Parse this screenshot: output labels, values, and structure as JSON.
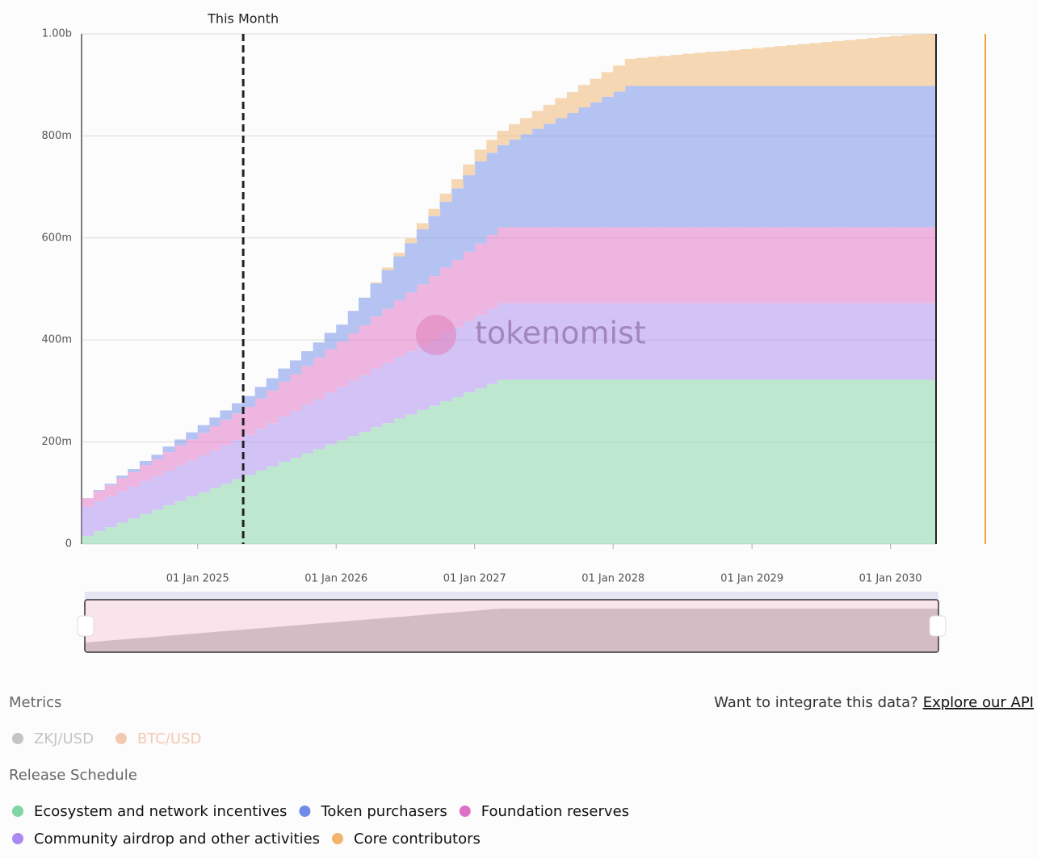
{
  "chart_data": {
    "type": "stacked-step-area",
    "annotations": [
      {
        "text": "This Month",
        "x": "2025-05-01"
      }
    ],
    "watermark": "tokenomist",
    "xlim": [
      "2024-03-01",
      "2030-05-01"
    ],
    "xticks": [
      {
        "value": "2025-01-01",
        "label": "01 Jan 2025"
      },
      {
        "value": "2026-01-01",
        "label": "01 Jan 2026"
      },
      {
        "value": "2027-01-01",
        "label": "01 Jan 2027"
      },
      {
        "value": "2028-01-01",
        "label": "01 Jan 2028"
      },
      {
        "value": "2029-01-01",
        "label": "01 Jan 2029"
      },
      {
        "value": "2030-01-01",
        "label": "01 Jan 2030"
      }
    ],
    "ylim": [
      0,
      1000
    ],
    "yticks": [
      0,
      {
        "value": 200,
        "label": "200m"
      },
      {
        "value": 400,
        "label": "400m"
      },
      {
        "value": 600,
        "label": "600m"
      },
      {
        "value": 800,
        "label": "800m"
      },
      {
        "value": 1000,
        "label": "1.00b"
      }
    ],
    "grid": true,
    "legend_title": "Release Schedule",
    "x": [
      "2024-03-01",
      "2024-04-01",
      "2024-05-01",
      "2024-06-01",
      "2024-07-01",
      "2024-08-01",
      "2024-09-01",
      "2024-10-01",
      "2024-11-01",
      "2024-12-01",
      "2025-01-01",
      "2025-02-01",
      "2025-03-01",
      "2025-04-01",
      "2025-05-01",
      "2025-06-01",
      "2025-07-01",
      "2025-08-01",
      "2025-09-01",
      "2025-10-01",
      "2025-11-01",
      "2025-12-01",
      "2026-01-01",
      "2026-02-01",
      "2026-03-01",
      "2026-04-01",
      "2026-05-01",
      "2026-06-01",
      "2026-07-01",
      "2026-08-01",
      "2026-09-01",
      "2026-10-01",
      "2026-11-01",
      "2026-12-01",
      "2027-01-01",
      "2027-02-01",
      "2027-03-01",
      "2027-04-01",
      "2027-05-01",
      "2027-06-01",
      "2027-07-01",
      "2027-08-01",
      "2027-09-01",
      "2027-10-01",
      "2027-11-01",
      "2027-12-01",
      "2028-01-01",
      "2028-02-01",
      "2028-03-01",
      "2028-04-01",
      "2028-05-01",
      "2028-06-01",
      "2028-07-01",
      "2028-08-01",
      "2028-09-01",
      "2028-10-01",
      "2028-11-01",
      "2028-12-01",
      "2029-01-01",
      "2029-02-01",
      "2029-03-01",
      "2029-04-01",
      "2029-05-01",
      "2029-06-01",
      "2029-07-01",
      "2029-08-01",
      "2029-09-01",
      "2029-10-01",
      "2029-11-01",
      "2029-12-01",
      "2030-01-01",
      "2030-02-01",
      "2030-03-01",
      "2030-04-01"
    ],
    "series": [
      {
        "name": "Ecosystem and network incentives",
        "color": "#7fd6a4",
        "values": [
          16,
          25,
          33,
          42,
          50,
          59,
          67,
          76,
          84,
          93,
          101,
          110,
          118,
          127,
          135,
          144,
          152,
          161,
          169,
          178,
          186,
          195,
          203,
          212,
          220,
          229,
          237,
          246,
          254,
          263,
          271,
          280,
          288,
          297,
          305,
          314,
          322,
          322,
          322,
          322,
          322,
          322,
          322,
          322,
          322,
          322,
          322,
          322,
          322,
          322,
          322,
          322,
          322,
          322,
          322,
          322,
          322,
          322,
          322,
          322,
          322,
          322,
          322,
          322,
          322,
          322,
          322,
          322,
          322,
          322,
          322,
          322,
          322,
          322
        ]
      },
      {
        "name": "Community airdrop and other activities",
        "color": "#a98af0",
        "values": [
          57,
          59,
          60,
          62,
          63,
          65,
          66,
          68,
          70,
          71,
          73,
          74,
          76,
          77,
          79,
          82,
          85,
          89,
          92,
          95,
          98,
          102,
          105,
          108,
          111,
          115,
          118,
          121,
          124,
          127,
          131,
          134,
          137,
          140,
          144,
          147,
          150,
          150,
          150,
          150,
          150,
          150,
          150,
          150,
          150,
          150,
          150,
          150,
          150,
          150,
          150,
          150,
          150,
          150,
          150,
          150,
          150,
          150,
          150,
          150,
          150,
          150,
          150,
          150,
          150,
          150,
          150,
          150,
          150,
          150,
          150,
          150,
          150,
          150
        ]
      },
      {
        "name": "Foundation reserves",
        "color": "#e070c6",
        "values": [
          17,
          20,
          22,
          25,
          28,
          31,
          33,
          36,
          39,
          41,
          44,
          47,
          50,
          52,
          55,
          59,
          64,
          68,
          72,
          76,
          81,
          85,
          89,
          93,
          98,
          102,
          106,
          111,
          115,
          119,
          123,
          128,
          132,
          136,
          140,
          145,
          149,
          149,
          149,
          149,
          149,
          149,
          149,
          149,
          149,
          149,
          149,
          149,
          149,
          149,
          149,
          149,
          149,
          149,
          149,
          149,
          149,
          149,
          149,
          149,
          149,
          149,
          149,
          149,
          149,
          149,
          149,
          149,
          149,
          149,
          149,
          149,
          149,
          149
        ]
      },
      {
        "name": "Token purchasers",
        "color": "#6f8ce8",
        "values": [
          0,
          2,
          3,
          5,
          6,
          8,
          9,
          11,
          12,
          14,
          15,
          17,
          18,
          20,
          21,
          23,
          24,
          26,
          27,
          29,
          30,
          32,
          33,
          44,
          54,
          65,
          76,
          86,
          97,
          108,
          118,
          129,
          140,
          150,
          161,
          161,
          161,
          172,
          182,
          193,
          203,
          214,
          224,
          235,
          245,
          256,
          266,
          277,
          277,
          277,
          277,
          277,
          277,
          277,
          277,
          277,
          277,
          277,
          277,
          277,
          277,
          277,
          277,
          277,
          277,
          277,
          277,
          277,
          277,
          277,
          277,
          277,
          277,
          277
        ]
      },
      {
        "name": "Core contributors",
        "color": "#f2b46c",
        "values": [
          0,
          0,
          0,
          0,
          0,
          0,
          0,
          0,
          0,
          0,
          0,
          0,
          0,
          0,
          0,
          0,
          0,
          0,
          0,
          0,
          0,
          0,
          0,
          0,
          0,
          2,
          5,
          7,
          9,
          12,
          14,
          16,
          18,
          21,
          23,
          25,
          28,
          30,
          32,
          35,
          37,
          39,
          41,
          44,
          46,
          48,
          51,
          53,
          55,
          57,
          59,
          61,
          63,
          65,
          67,
          68,
          70,
          72,
          74,
          76,
          78,
          80,
          82,
          84,
          86,
          88,
          90,
          92,
          94,
          96,
          98,
          100,
          101,
          102
        ]
      }
    ]
  },
  "metrics": {
    "title": "Metrics",
    "items": [
      {
        "name": "ZKJ/USD",
        "color": "#c4c4c4"
      },
      {
        "name": "BTC/USD",
        "color": "#f4c9b2"
      }
    ]
  },
  "api": {
    "prompt": "Want to integrate this data?",
    "link": "Explore our API"
  }
}
